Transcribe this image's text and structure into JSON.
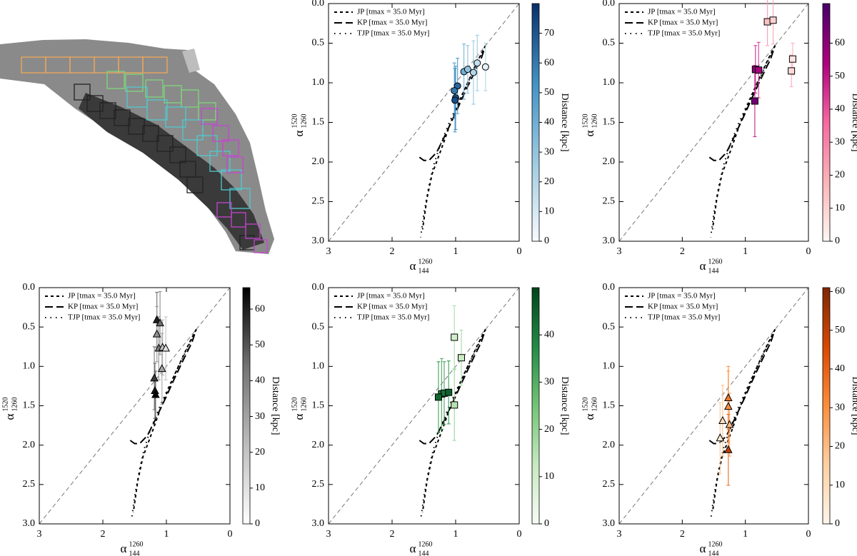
{
  "models": [
    {
      "name": "JP [tmax = 35.0 Myr]",
      "dash": "4,4",
      "x": [
        0.53,
        0.65,
        0.8,
        0.95,
        1.1,
        1.2,
        1.3,
        1.37,
        1.45,
        1.52
      ],
      "y": [
        0.53,
        0.72,
        0.98,
        1.25,
        1.55,
        1.78,
        2.0,
        2.15,
        2.45,
        2.85
      ]
    },
    {
      "name": "KP [tmax = 35.0 Myr]",
      "dash": "11,5",
      "x": [
        1.57,
        1.5,
        1.42,
        1.3,
        1.2,
        1.1,
        1.0,
        0.9,
        0.8,
        0.7,
        0.6,
        0.53
      ],
      "y": [
        1.94,
        1.98,
        1.98,
        1.88,
        1.72,
        1.55,
        1.38,
        1.2,
        1.03,
        0.86,
        0.7,
        0.53
      ]
    },
    {
      "name": "TJP [tmax = 35.0 Myr]",
      "dash": "1.5,6",
      "x": [
        0.53,
        0.7,
        0.9,
        1.1,
        1.25,
        1.35,
        1.42,
        1.5,
        1.55
      ],
      "y": [
        0.53,
        0.82,
        1.15,
        1.5,
        1.8,
        2.05,
        2.3,
        2.65,
        2.95
      ]
    }
  ],
  "chart_data": [
    {
      "type": "scatter",
      "marker": "circle",
      "cmap": [
        "#f7fbff",
        "#9ecae1",
        "#4292c6",
        "#08306b"
      ],
      "xlabel": {
        "symbol": "α",
        "sub": "144",
        "sup": "1260"
      },
      "ylabel": {
        "symbol": "α",
        "sub": "1260",
        "sup": "1520"
      },
      "clabel": "Distance [kpc]",
      "xlim": [
        3,
        0
      ],
      "ylim": [
        3,
        0
      ],
      "xticks": [
        3,
        2,
        1,
        0
      ],
      "yticks": [
        {
          "value": 0,
          "label": "0.0"
        },
        0.5,
        {
          "value": 1,
          "label": "1.0"
        },
        1.5,
        {
          "value": 2,
          "label": "2.0"
        },
        2.5,
        {
          "value": 3,
          "label": "3.0"
        }
      ],
      "clim": [
        0,
        80
      ],
      "cticks": [
        0,
        10,
        20,
        30,
        40,
        50,
        60,
        70
      ],
      "x": [
        0.97,
        1.0,
        1.01,
        1.02,
        0.87,
        0.81,
        0.72,
        0.66,
        0.53
      ],
      "values": [
        1.04,
        1.19,
        1.22,
        1.1,
        0.86,
        0.83,
        0.87,
        0.75,
        0.8
      ],
      "yerr": [
        0.35,
        0.4,
        0.4,
        0.35,
        0.35,
        0.3,
        0.4,
        0.35,
        0.3
      ],
      "distance": [
        65,
        70,
        72,
        60,
        40,
        30,
        20,
        15,
        5
      ]
    },
    {
      "type": "scatter",
      "marker": "square",
      "cmap": [
        "#fff7f3",
        "#fbb4b9",
        "#f768a1",
        "#ae017e",
        "#49006a"
      ],
      "xlabel": {
        "symbol": "α",
        "sub": "144",
        "sup": "1260"
      },
      "ylabel": {
        "symbol": "α",
        "sub": "1260",
        "sup": "1520"
      },
      "clabel": "Distance [kpc]",
      "xlim": [
        3,
        0
      ],
      "ylim": [
        3,
        0
      ],
      "xticks": [
        3,
        2,
        1,
        0
      ],
      "yticks": [
        {
          "value": 0,
          "label": "0.0"
        },
        0.5,
        {
          "value": 1,
          "label": "1.0"
        },
        1.5,
        {
          "value": 2,
          "label": "2.0"
        },
        2.5,
        {
          "value": 3,
          "label": "3.0"
        }
      ],
      "clim": [
        0,
        72
      ],
      "cticks": [
        0,
        10,
        20,
        30,
        40,
        50,
        60
      ],
      "x": [
        0.65,
        0.56,
        0.25,
        0.27,
        0.84,
        0.79,
        0.85
      ],
      "values": [
        0.23,
        0.21,
        0.7,
        0.85,
        0.83,
        0.84,
        1.23
      ],
      "yerr": [
        0.3,
        0.3,
        0.2,
        0.2,
        0.3,
        0.35,
        0.45
      ],
      "distance": [
        15,
        10,
        5,
        8,
        60,
        55,
        65
      ]
    },
    {
      "type": "scatter",
      "marker": "triangle",
      "cmap": [
        "#ffffff",
        "#bdbdbd",
        "#737373",
        "#000000"
      ],
      "xlabel": {
        "symbol": "α",
        "sub": "144",
        "sup": "1260"
      },
      "ylabel": {
        "symbol": "α",
        "sub": "1260",
        "sup": "1520"
      },
      "clabel": "Distance [kpc]",
      "xlim": [
        3,
        0
      ],
      "ylim": [
        3,
        0
      ],
      "xticks": [
        3,
        2,
        1,
        0
      ],
      "yticks": [
        {
          "value": 0,
          "label": "0.0"
        },
        0.5,
        {
          "value": 1,
          "label": "1.0"
        },
        1.5,
        {
          "value": 2,
          "label": "2.0"
        },
        2.5,
        {
          "value": 3,
          "label": "3.0"
        }
      ],
      "clim": [
        0,
        66
      ],
      "cticks": [
        0,
        10,
        20,
        30,
        40,
        50,
        60
      ],
      "x": [
        1.15,
        1.1,
        1.15,
        1.12,
        1.06,
        1.01,
        1.07,
        1.19,
        1.18,
        1.17
      ],
      "values": [
        0.41,
        0.45,
        0.59,
        0.77,
        0.76,
        0.77,
        1.03,
        1.15,
        1.31,
        1.36
      ],
      "yerr": [
        0.35,
        0.4,
        0.35,
        0.4,
        0.35,
        0.4,
        0.45,
        0.4,
        0.35,
        0.3
      ],
      "distance": [
        60,
        45,
        35,
        40,
        20,
        10,
        30,
        55,
        62,
        65
      ]
    },
    {
      "type": "scatter",
      "marker": "square",
      "cmap": [
        "#f7fcf5",
        "#c7e9c0",
        "#74c476",
        "#238b45",
        "#00441b"
      ],
      "xlabel": {
        "symbol": "α",
        "sub": "144",
        "sup": "1260"
      },
      "ylabel": {
        "symbol": "α",
        "sub": "1260",
        "sup": "1520"
      },
      "clabel": "Distance [kpc]",
      "xlim": [
        3,
        0
      ],
      "ylim": [
        3,
        0
      ],
      "xticks": [
        3,
        2,
        1,
        0
      ],
      "yticks": [
        {
          "value": 0,
          "label": "0.0"
        },
        0.5,
        {
          "value": 1,
          "label": "1.0"
        },
        1.5,
        {
          "value": 2,
          "label": "2.0"
        },
        2.5,
        {
          "value": 3,
          "label": "3.0"
        }
      ],
      "clim": [
        0,
        50
      ],
      "cticks": [
        0,
        10,
        20,
        30,
        40
      ],
      "x": [
        1.02,
        0.91,
        1.22,
        1.18,
        1.11,
        1.27,
        1.02
      ],
      "values": [
        0.63,
        0.89,
        1.35,
        1.34,
        1.33,
        1.39,
        1.49
      ],
      "yerr": [
        0.4,
        0.35,
        0.45,
        0.4,
        0.4,
        0.45,
        0.45
      ],
      "distance": [
        10,
        12,
        40,
        42,
        45,
        44,
        15
      ]
    },
    {
      "type": "scatter",
      "marker": "triangle",
      "cmap": [
        "#fff5eb",
        "#fdd0a2",
        "#fd8d3c",
        "#d94801",
        "#7f2704"
      ],
      "xlabel": {
        "symbol": "α",
        "sub": "144",
        "sup": "1260"
      },
      "ylabel": {
        "symbol": "α",
        "sub": "1260",
        "sup": "1520"
      },
      "clabel": "Distance [kpc]",
      "xlim": [
        3,
        0
      ],
      "ylim": [
        3,
        0
      ],
      "xticks": [
        3,
        2,
        1,
        0
      ],
      "yticks": [
        {
          "value": 0,
          "label": "0.0"
        },
        0.5,
        {
          "value": 1,
          "label": "1.0"
        },
        1.5,
        {
          "value": 2,
          "label": "2.0"
        },
        2.5,
        {
          "value": 3,
          "label": "3.0"
        }
      ],
      "clim": [
        0,
        61
      ],
      "cticks": [
        0,
        10,
        20,
        30,
        40,
        50,
        60
      ],
      "x": [
        1.27,
        1.27,
        1.36,
        1.25,
        1.4,
        1.27
      ],
      "values": [
        1.4,
        1.51,
        1.69,
        1.74,
        1.91,
        2.06
      ],
      "yerr": [
        0.4,
        0.45,
        0.45,
        0.4,
        0.45,
        0.45
      ],
      "distance": [
        35,
        30,
        10,
        20,
        5,
        50
      ]
    }
  ]
}
